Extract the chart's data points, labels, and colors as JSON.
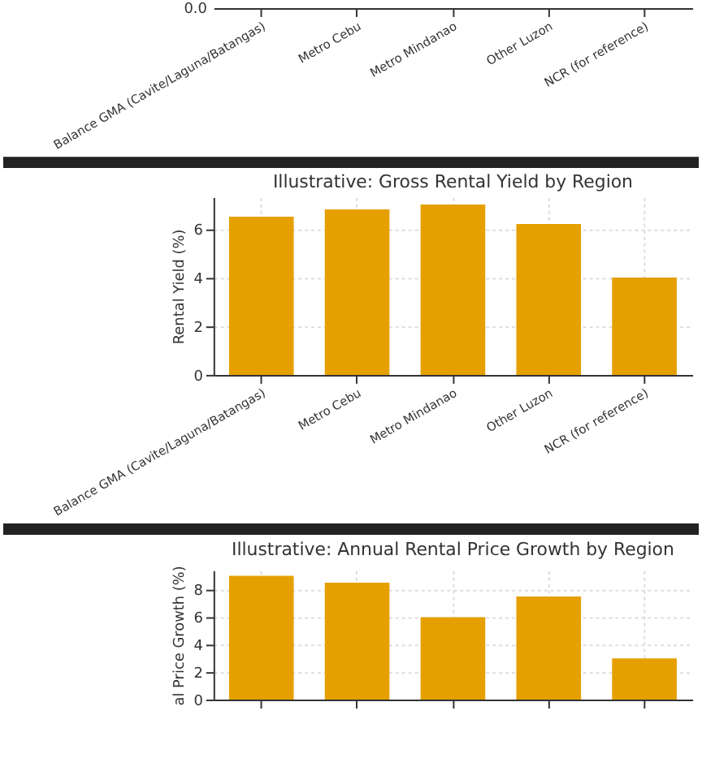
{
  "chart_data": [
    {
      "type": "other",
      "categories": [
        "Balance GMA (Cavite/Laguna/Batangas)",
        "Metro Cebu",
        "Metro Mindanao",
        "Other Luzon",
        "NCR (for reference)"
      ],
      "annotations": [
        "0.0"
      ]
    },
    {
      "type": "bar",
      "title": "Illustrative: Gross Rental Yield by Region",
      "ylabel": "Rental Yield (%)",
      "categories": [
        "Balance GMA (Cavite/Laguna/Batangas)",
        "Metro Cebu",
        "Metro Mindanao",
        "Other Luzon",
        "NCR (for reference)"
      ],
      "values": [
        6.5,
        6.8,
        7.0,
        6.2,
        4.0
      ],
      "color": "#e5a000",
      "ylim": [
        0,
        7.3
      ],
      "yticks": [
        0,
        2,
        4,
        6
      ],
      "grid": true
    },
    {
      "type": "bar",
      "title": "Illustrative: Annual Rental Price Growth by Region",
      "ylabel": "al Price Growth (%)",
      "categories": [
        null,
        null,
        null,
        null,
        null
      ],
      "values": [
        9.0,
        8.5,
        6.0,
        7.5,
        3.0
      ],
      "color": "#e5a000",
      "ylim": [
        0,
        9.4
      ],
      "yticks": [
        0,
        2,
        4,
        6,
        8
      ],
      "grid": true,
      "tick_labels": "y"
    }
  ]
}
